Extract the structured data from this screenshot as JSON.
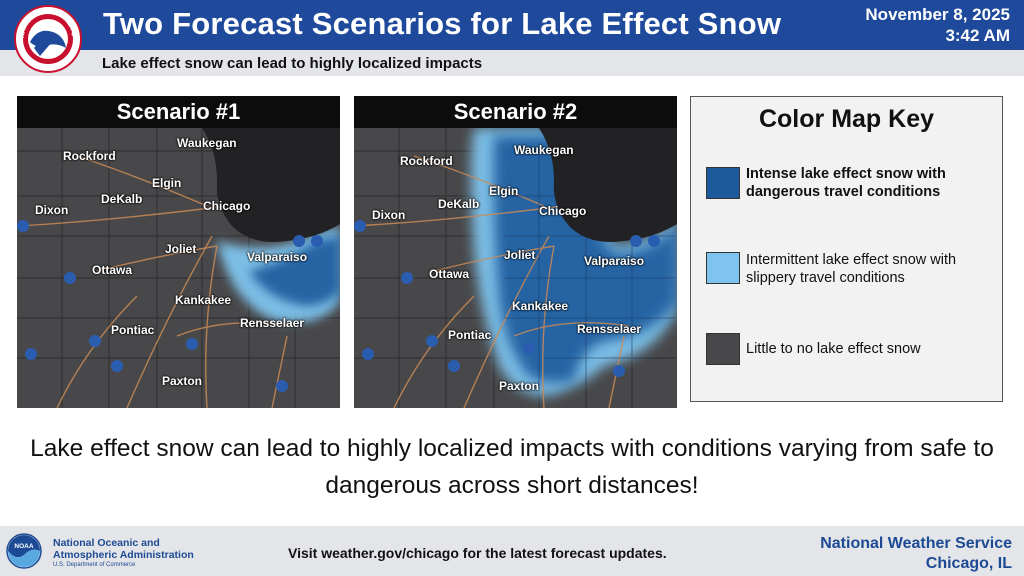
{
  "header": {
    "title": "Two Forecast Scenarios for Lake Effect Snow",
    "date": "November 8, 2025",
    "time": "3:42 AM",
    "subtitle": "Lake effect snow can lead to highly localized impacts",
    "logo_text": "NATIONAL WEATHER SERVICE"
  },
  "scenarios": [
    {
      "title": "Scenario #1",
      "cities": [
        "Rockford",
        "Waukegan",
        "Elgin",
        "Dixon",
        "DeKalb",
        "Chicago",
        "Joliet",
        "Ottawa",
        "Valparaiso",
        "Kankakee",
        "Rensselaer",
        "Pontiac",
        "Paxton"
      ]
    },
    {
      "title": "Scenario #2",
      "cities": [
        "Rockford",
        "Waukegan",
        "Elgin",
        "Dixon",
        "DeKalb",
        "Chicago",
        "Joliet",
        "Ottawa",
        "Valparaiso",
        "Kankakee",
        "Rensselaer",
        "Pontiac",
        "Paxton"
      ]
    }
  ],
  "key": {
    "title": "Color Map Key",
    "items": [
      {
        "label": "Intense lake effect snow with dangerous travel conditions",
        "color": "#1c5a9c"
      },
      {
        "label": "Intermittent lake effect snow with slippery travel conditions",
        "color": "#7fc4ee"
      },
      {
        "label": "Little to no lake effect snow",
        "color": "#48484a"
      }
    ]
  },
  "message": "Lake effect snow can lead to highly localized impacts with conditions varying from safe to dangerous across short distances!",
  "footer": {
    "noaa_line1": "National Oceanic and",
    "noaa_line2": "Atmospheric Administration",
    "noaa_dept": "U.S. Department of Commerce",
    "logo_text": "NOAA",
    "visit": "Visit weather.gov/chicago for the latest forecast updates.",
    "office": "National Weather Service",
    "location": "Chicago, IL"
  },
  "colors": {
    "header_blue": "#1f4a9c",
    "map_gray": "#48484a",
    "lake": "#222224",
    "intense_snow": "#1c5a9c",
    "intermittent_snow": "#7fc4ee",
    "roads": "#c98a55"
  }
}
